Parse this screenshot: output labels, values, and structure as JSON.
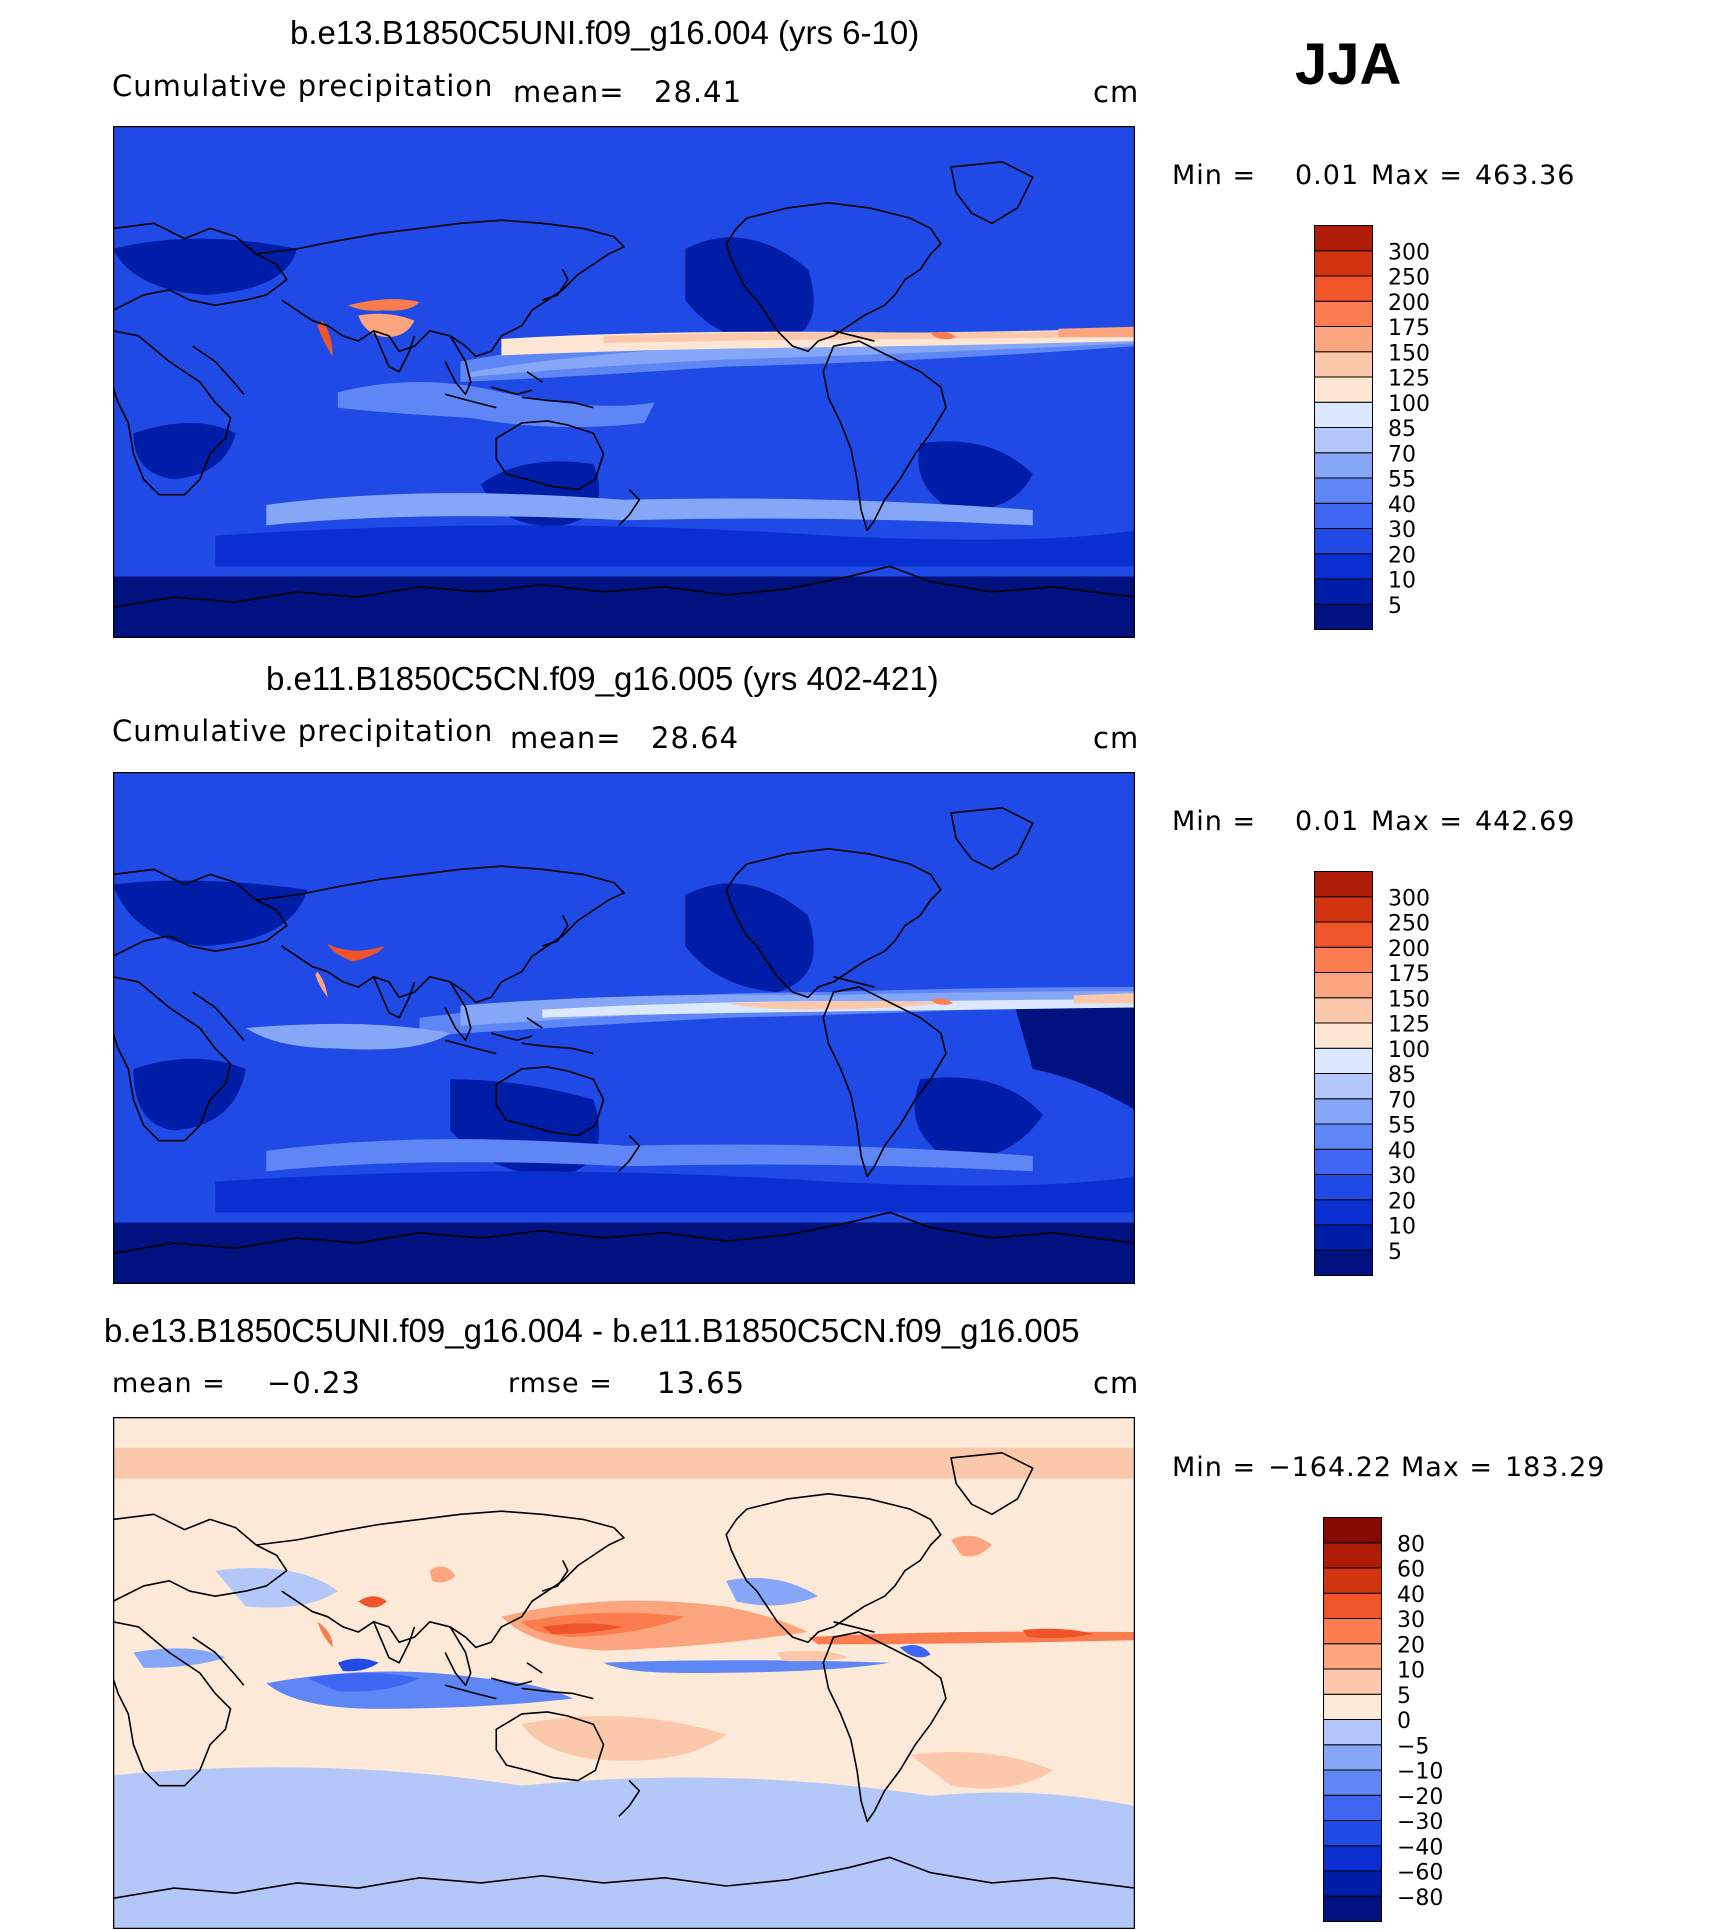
{
  "season": "JJA",
  "colors": {
    "blues": [
      "#00127f",
      "#001da8",
      "#0a2fd0",
      "#1f4ae6",
      "#3d67f2",
      "#5f86f5",
      "#86a7f7",
      "#b3c8f9",
      "#dce8fd"
    ],
    "reds": [
      "#fde7d4",
      "#fcc8ac",
      "#fca57f",
      "#fb7d4f",
      "#f0552a",
      "#d33410",
      "#ae1c06",
      "#840a02"
    ],
    "coast": "#000000"
  },
  "chart_data": [
    {
      "type": "heatmap",
      "title": "b.e13.B1850C5UNI.f09_g16.004 (yrs 6-10)",
      "variable": "Cumulative precipitation",
      "units": "cm",
      "mean_label": "mean=",
      "mean": "28.41",
      "min_label": "Min =",
      "min": "0.01",
      "max_label": "Max =",
      "max": "463.36",
      "colorbar": [
        "5",
        "10",
        "20",
        "30",
        "40",
        "55",
        "70",
        "85",
        "100",
        "125",
        "150",
        "175",
        "200",
        "250",
        "300"
      ],
      "projection": "cylindrical equidistant, 0–360 longitude, Pacific centered",
      "features": "strong ITCZ and Asian monsoon maxima, dry subtropical highs"
    },
    {
      "type": "heatmap",
      "title": "b.e11.B1850C5CN.f09_g16.005 (yrs 402-421)",
      "variable": "Cumulative precipitation",
      "units": "cm",
      "mean_label": "mean=",
      "mean": "28.64",
      "min_label": "Min =",
      "min": "0.01",
      "max_label": "Max =",
      "max": "442.69",
      "colorbar": [
        "5",
        "10",
        "20",
        "30",
        "40",
        "55",
        "70",
        "85",
        "100",
        "125",
        "150",
        "175",
        "200",
        "250",
        "300"
      ],
      "projection": "cylindrical equidistant, 0–360 longitude, Pacific centered"
    },
    {
      "type": "heatmap",
      "title": "b.e13.B1850C5UNI.f09_g16.004 - b.e11.B1850C5CN.f09_g16.005",
      "units": "cm",
      "mean_label": "mean =",
      "mean": "−0.23",
      "rmse_label": "rmse =",
      "rmse": "13.65",
      "min_label": "Min =",
      "min": "−164.22",
      "max_label": "Max =",
      "max": "183.29",
      "colorbar": [
        "−80",
        "−60",
        "−40",
        "−30",
        "−20",
        "−10",
        "−5",
        "0",
        "5",
        "10",
        "20",
        "30",
        "40",
        "60",
        "80"
      ],
      "projection": "cylindrical equidistant, 0–360 longitude, Pacific centered"
    }
  ]
}
